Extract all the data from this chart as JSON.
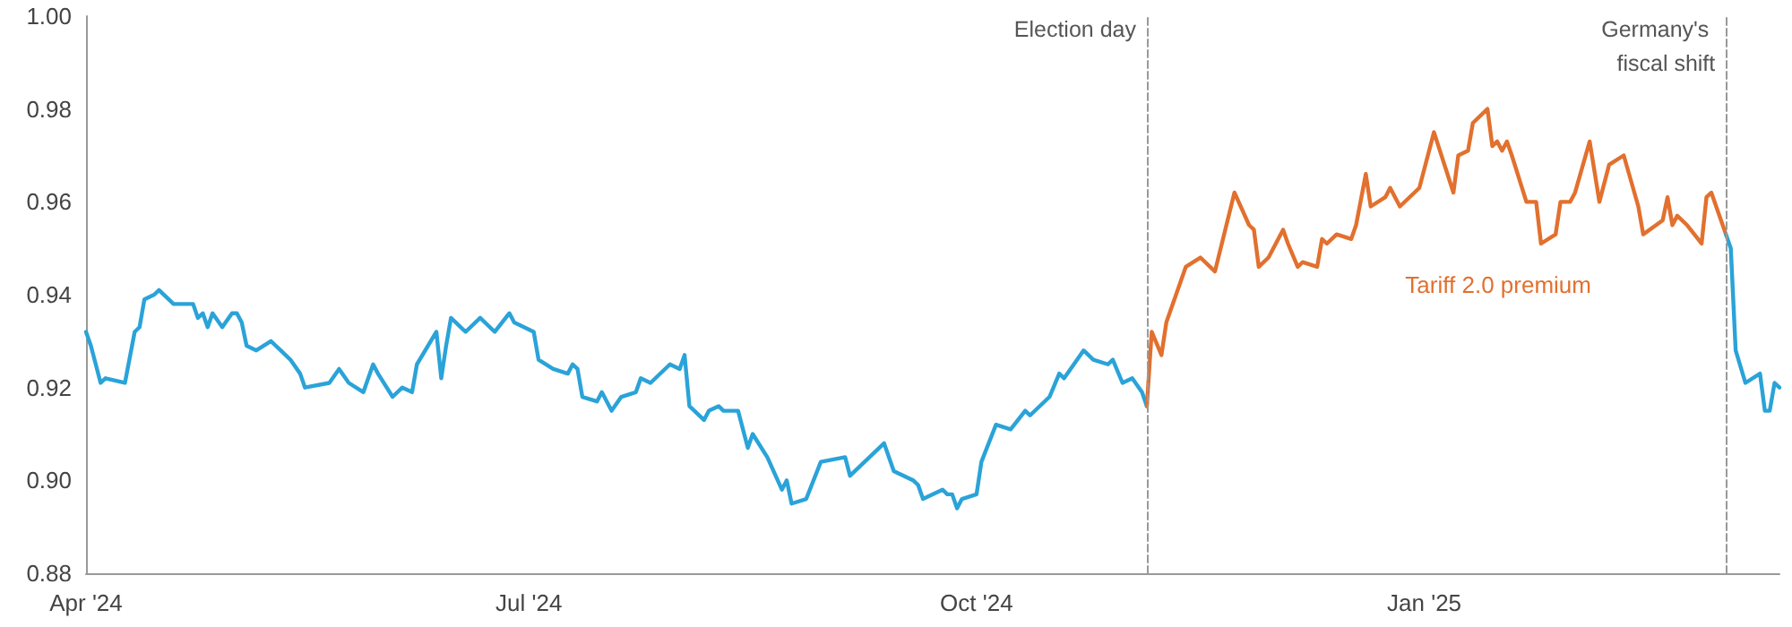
{
  "chart_data": {
    "type": "line",
    "line_style": "solid",
    "marker": "none",
    "grid": false,
    "legend": false,
    "xlim": [
      "2024-04-01",
      "2025-03-15"
    ],
    "xticks": [
      {
        "value": "2024-04-01",
        "label": "Apr '24"
      },
      {
        "value": "2024-07-01",
        "label": "Jul '24"
      },
      {
        "value": "2024-10-01",
        "label": "Oct '24"
      },
      {
        "value": "2025-01-01",
        "label": "Jan '25"
      }
    ],
    "ylim": [
      0.88,
      1.0
    ],
    "yticks": [
      {
        "value": 0.88,
        "label": "0.88"
      },
      {
        "value": 0.9,
        "label": "0.90"
      },
      {
        "value": 0.92,
        "label": "0.92"
      },
      {
        "value": 0.94,
        "label": "0.94"
      },
      {
        "value": 0.96,
        "label": "0.96"
      },
      {
        "value": 0.98,
        "label": "0.98"
      },
      {
        "value": 1.0,
        "label": "1.00"
      }
    ],
    "series": [
      {
        "color": "#2aa3d8",
        "x": [
          "2024-04-01",
          "2024-04-02",
          "2024-04-04",
          "2024-04-05",
          "2024-04-09",
          "2024-04-11",
          "2024-04-12",
          "2024-04-13",
          "2024-04-15",
          "2024-04-16",
          "2024-04-19",
          "2024-04-23",
          "2024-04-24",
          "2024-04-25",
          "2024-04-26",
          "2024-04-27",
          "2024-04-29",
          "2024-05-01",
          "2024-05-02",
          "2024-05-03",
          "2024-05-04",
          "2024-05-06",
          "2024-05-09",
          "2024-05-10",
          "2024-05-11",
          "2024-05-13",
          "2024-05-15",
          "2024-05-16",
          "2024-05-21",
          "2024-05-23",
          "2024-05-25",
          "2024-05-28",
          "2024-05-30",
          "2024-05-31",
          "2024-06-03",
          "2024-06-05",
          "2024-06-07",
          "2024-06-08",
          "2024-06-12",
          "2024-06-13",
          "2024-06-14",
          "2024-06-15",
          "2024-06-18",
          "2024-06-21",
          "2024-06-24",
          "2024-06-27",
          "2024-06-28",
          "2024-07-02",
          "2024-07-03",
          "2024-07-06",
          "2024-07-09",
          "2024-07-10",
          "2024-07-11",
          "2024-07-12",
          "2024-07-15",
          "2024-07-16",
          "2024-07-18",
          "2024-07-20",
          "2024-07-23",
          "2024-07-24",
          "2024-07-26",
          "2024-07-30",
          "2024-08-01",
          "2024-08-02",
          "2024-08-03",
          "2024-08-06",
          "2024-08-07",
          "2024-08-09",
          "2024-08-10",
          "2024-08-13",
          "2024-08-15",
          "2024-08-16",
          "2024-08-19",
          "2024-08-22",
          "2024-08-23",
          "2024-08-24",
          "2024-08-27",
          "2024-08-30",
          "2024-09-04",
          "2024-09-05",
          "2024-09-12",
          "2024-09-14",
          "2024-09-18",
          "2024-09-19",
          "2024-09-20",
          "2024-09-24",
          "2024-09-25",
          "2024-09-26",
          "2024-09-27",
          "2024-09-28",
          "2024-10-01",
          "2024-10-02",
          "2024-10-05",
          "2024-10-08",
          "2024-10-11",
          "2024-10-12",
          "2024-10-16",
          "2024-10-18",
          "2024-10-19",
          "2024-10-23",
          "2024-10-25",
          "2024-10-28",
          "2024-10-29",
          "2024-10-31",
          "2024-11-02",
          "2024-11-04",
          "2024-11-05"
        ],
        "values": [
          0.932,
          0.929,
          0.921,
          0.922,
          0.921,
          0.932,
          0.933,
          0.939,
          0.94,
          0.941,
          0.938,
          0.938,
          0.935,
          0.936,
          0.933,
          0.936,
          0.933,
          0.936,
          0.936,
          0.934,
          0.929,
          0.928,
          0.93,
          0.929,
          0.928,
          0.926,
          0.923,
          0.92,
          0.921,
          0.924,
          0.921,
          0.919,
          0.925,
          0.923,
          0.918,
          0.92,
          0.919,
          0.925,
          0.932,
          0.922,
          0.929,
          0.935,
          0.932,
          0.935,
          0.932,
          0.936,
          0.934,
          0.932,
          0.926,
          0.924,
          0.923,
          0.925,
          0.924,
          0.918,
          0.917,
          0.919,
          0.915,
          0.918,
          0.919,
          0.922,
          0.921,
          0.925,
          0.924,
          0.927,
          0.916,
          0.913,
          0.915,
          0.916,
          0.915,
          0.915,
          0.907,
          0.91,
          0.905,
          0.898,
          0.9,
          0.895,
          0.896,
          0.904,
          0.905,
          0.901,
          0.908,
          0.902,
          0.9,
          0.899,
          0.896,
          0.898,
          0.897,
          0.897,
          0.894,
          0.896,
          0.897,
          0.904,
          0.912,
          0.911,
          0.915,
          0.914,
          0.918,
          0.923,
          0.922,
          0.928,
          0.926,
          0.925,
          0.926,
          0.921,
          0.922,
          0.919,
          0.916
        ]
      },
      {
        "name": "Tariff 2.0 premium",
        "color": "#e2702e",
        "x": [
          "2024-11-05",
          "2024-11-06",
          "2024-11-08",
          "2024-11-09",
          "2024-11-13",
          "2024-11-16",
          "2024-11-19",
          "2024-11-23",
          "2024-11-26",
          "2024-11-27",
          "2024-11-28",
          "2024-11-30",
          "2024-12-03",
          "2024-12-04",
          "2024-12-06",
          "2024-12-07",
          "2024-12-10",
          "2024-12-11",
          "2024-12-12",
          "2024-12-14",
          "2024-12-17",
          "2024-12-18",
          "2024-12-20",
          "2024-12-21",
          "2024-12-24",
          "2024-12-25",
          "2024-12-27",
          "2024-12-31",
          "2025-01-03",
          "2025-01-07",
          "2025-01-08",
          "2025-01-10",
          "2025-01-11",
          "2025-01-14",
          "2025-01-15",
          "2025-01-16",
          "2025-01-17",
          "2025-01-18",
          "2025-01-19",
          "2025-01-22",
          "2025-01-24",
          "2025-01-25",
          "2025-01-28",
          "2025-01-29",
          "2025-01-31",
          "2025-02-01",
          "2025-02-04",
          "2025-02-06",
          "2025-02-08",
          "2025-02-11",
          "2025-02-14",
          "2025-02-15",
          "2025-02-19",
          "2025-02-20",
          "2025-02-21",
          "2025-02-22",
          "2025-02-24",
          "2025-02-27",
          "2025-02-28",
          "2025-03-01",
          "2025-03-04"
        ],
        "values": [
          0.916,
          0.932,
          0.927,
          0.934,
          0.946,
          0.948,
          0.945,
          0.962,
          0.955,
          0.954,
          0.946,
          0.948,
          0.954,
          0.951,
          0.946,
          0.947,
          0.946,
          0.952,
          0.951,
          0.953,
          0.952,
          0.955,
          0.966,
          0.959,
          0.961,
          0.963,
          0.959,
          0.963,
          0.975,
          0.962,
          0.97,
          0.971,
          0.977,
          0.98,
          0.972,
          0.973,
          0.971,
          0.973,
          0.97,
          0.96,
          0.96,
          0.951,
          0.953,
          0.96,
          0.96,
          0.962,
          0.973,
          0.96,
          0.968,
          0.97,
          0.959,
          0.953,
          0.956,
          0.961,
          0.955,
          0.957,
          0.955,
          0.951,
          0.961,
          0.962,
          0.953
        ]
      },
      {
        "color": "#2aa3d8",
        "x": [
          "2025-03-04",
          "2025-03-05",
          "2025-03-06",
          "2025-03-08",
          "2025-03-11",
          "2025-03-12",
          "2025-03-13",
          "2025-03-14",
          "2025-03-15"
        ],
        "values": [
          0.953,
          0.95,
          0.928,
          0.921,
          0.923,
          0.915,
          0.915,
          0.921,
          0.92
        ]
      }
    ],
    "ref_lines": [
      {
        "axis": "x",
        "value": "2024-11-05",
        "label": "Election day",
        "color": "#999999",
        "line_style": "dashed"
      },
      {
        "axis": "x",
        "value": "2025-03-04",
        "label": "Germany's fiscal shift",
        "color": "#999999",
        "line_style": "dashed"
      }
    ]
  }
}
